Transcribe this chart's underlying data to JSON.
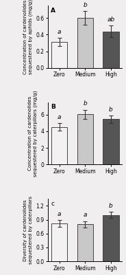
{
  "panels": [
    {
      "label": "A",
      "ylabel": "Concentration of cardenolides\nsequestered by aphids (mg/g)",
      "categories": [
        "Zero",
        "Medium",
        "High"
      ],
      "values": [
        0.31,
        0.6,
        0.44
      ],
      "errors": [
        0.05,
        0.085,
        0.07
      ],
      "sig_labels": [
        "a",
        "b",
        "ab"
      ],
      "ylim": [
        0,
        0.75
      ],
      "yticks": [
        0.0,
        0.2,
        0.4,
        0.6
      ],
      "ytick_labels": [
        "0.0",
        "0.2",
        "0.4",
        "0.6"
      ],
      "bar_colors": [
        "#f2f2f2",
        "#c8c8c8",
        "#555555"
      ]
    },
    {
      "label": "B",
      "ylabel": "Concentration of cardenolides\nsequestered by caterpillars (mg/g)",
      "categories": [
        "Zero",
        "Medium",
        "High"
      ],
      "values": [
        4.5,
        6.05,
        5.45
      ],
      "errors": [
        0.45,
        0.55,
        0.42
      ],
      "sig_labels": [
        "a",
        "b",
        "b"
      ],
      "ylim": [
        0,
        7.5
      ],
      "yticks": [
        0,
        2,
        4,
        6
      ],
      "ytick_labels": [
        "0",
        "2",
        "4",
        "6"
      ],
      "bar_colors": [
        "#f2f2f2",
        "#c8c8c8",
        "#555555"
      ]
    },
    {
      "label": "c",
      "ylabel": "Diversity of cardenolides\nsequestered by caterpillars",
      "categories": [
        "Zero",
        "Medium",
        "High"
      ],
      "values": [
        0.82,
        0.8,
        1.0
      ],
      "errors": [
        0.075,
        0.07,
        0.065
      ],
      "sig_labels": [
        "a",
        "a",
        "b"
      ],
      "ylim": [
        0,
        1.35
      ],
      "yticks": [
        0.0,
        0.3,
        0.6,
        0.9,
        1.2
      ],
      "ytick_labels": [
        "0.0",
        "0.3",
        "0.6",
        "0.9",
        "1.2"
      ],
      "bar_colors": [
        "#f2f2f2",
        "#c8c8c8",
        "#555555"
      ]
    }
  ],
  "edge_color": "#444444",
  "background_color": "#f0eeee",
  "label_fontsize": 5.2,
  "tick_fontsize": 5.5,
  "sig_fontsize": 6.5,
  "panel_label_fontsize": 6.5
}
